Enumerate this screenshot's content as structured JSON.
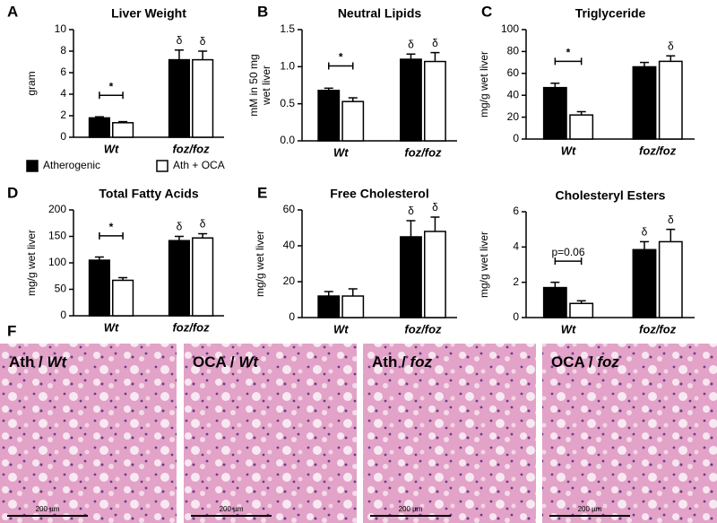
{
  "chart_data": [
    {
      "type": "bar",
      "panel": "A",
      "title": "Liver Weight",
      "ylabel": "gram",
      "categories": [
        "Wt",
        "foz/foz"
      ],
      "series": [
        {
          "name": "Atherogenic",
          "color": "#000000",
          "values": [
            1.8,
            7.2
          ],
          "errors": [
            0.1,
            0.9
          ]
        },
        {
          "name": "Ath + OCA",
          "color": "#ffffff",
          "values": [
            1.35,
            7.2
          ],
          "errors": [
            0.1,
            0.8
          ]
        }
      ],
      "ylim": [
        0,
        10
      ],
      "yticks": [
        0,
        2,
        4,
        6,
        8,
        10
      ],
      "significance": "*",
      "delta": "δ",
      "delta_series": [
        0,
        1
      ],
      "legend": true
    },
    {
      "type": "bar",
      "panel": "B",
      "title": "Neutral Lipids",
      "ylabel": [
        "mM in 50 mg",
        "wet liver"
      ],
      "categories": [
        "Wt",
        "foz/foz"
      ],
      "series": [
        {
          "color": "#000000",
          "values": [
            0.68,
            1.1
          ],
          "errors": [
            0.03,
            0.07
          ]
        },
        {
          "color": "#ffffff",
          "values": [
            0.53,
            1.07
          ],
          "errors": [
            0.05,
            0.12
          ]
        }
      ],
      "ylim": [
        0,
        1.5
      ],
      "yticks": [
        {
          "value": 0,
          "label": "0.0"
        },
        {
          "value": 0.5,
          "label": "0.5"
        },
        {
          "value": 1,
          "label": "1.0"
        },
        {
          "value": 1.5,
          "label": "1.5"
        }
      ],
      "significance": "*",
      "delta": "δ",
      "delta_series": [
        0,
        1
      ]
    },
    {
      "type": "bar",
      "panel": "C",
      "title": "Triglyceride",
      "ylabel": "mg/g wet liver",
      "categories": [
        "Wt",
        "foz/foz"
      ],
      "series": [
        {
          "color": "#000000",
          "values": [
            47,
            66
          ],
          "errors": [
            4,
            4
          ]
        },
        {
          "color": "#ffffff",
          "values": [
            22,
            71
          ],
          "errors": [
            3,
            5
          ]
        }
      ],
      "ylim": [
        0,
        100
      ],
      "yticks": [
        0,
        20,
        40,
        60,
        80,
        100
      ],
      "significance": "*",
      "delta": "δ",
      "delta_series": [
        1
      ]
    },
    {
      "type": "bar",
      "panel": "D",
      "title": "Total Fatty Acids",
      "ylabel": "mg/g wet liver",
      "categories": [
        "Wt",
        "foz/foz"
      ],
      "series": [
        {
          "color": "#000000",
          "values": [
            105,
            142
          ],
          "errors": [
            6,
            8
          ]
        },
        {
          "color": "#ffffff",
          "values": [
            67,
            147
          ],
          "errors": [
            5,
            8
          ]
        }
      ],
      "ylim": [
        0,
        200
      ],
      "yticks": [
        0,
        50,
        100,
        150,
        200
      ],
      "significance": "*",
      "delta": "δ",
      "delta_series": [
        0,
        1
      ]
    },
    {
      "type": "bar",
      "panel": "E",
      "title": "Free Cholesterol",
      "ylabel": "mg/g wet liver",
      "categories": [
        "Wt",
        "foz/foz"
      ],
      "series": [
        {
          "color": "#000000",
          "values": [
            12,
            45
          ],
          "errors": [
            2.5,
            9
          ]
        },
        {
          "color": "#ffffff",
          "values": [
            12,
            48
          ],
          "errors": [
            4,
            8
          ]
        }
      ],
      "ylim": [
        0,
        60
      ],
      "yticks": [
        0,
        20,
        40,
        60
      ],
      "delta": "δ",
      "delta_series": [
        0,
        1
      ]
    },
    {
      "type": "bar",
      "title": "Cholesteryl Esters",
      "ylabel": "mg/g wet liver",
      "categories": [
        "Wt",
        "foz/foz"
      ],
      "series": [
        {
          "color": "#000000",
          "values": [
            1.7,
            3.85
          ],
          "errors": [
            0.3,
            0.45
          ]
        },
        {
          "color": "#ffffff",
          "values": [
            0.8,
            4.3
          ],
          "errors": [
            0.15,
            0.7
          ]
        }
      ],
      "ylim": [
        0,
        6
      ],
      "yticks": [
        0,
        2,
        4,
        6
      ],
      "significance": "p=0.06",
      "delta": "δ",
      "delta_series": [
        0,
        1
      ]
    }
  ],
  "histology": {
    "panel": "F",
    "images": [
      {
        "treatment": "Ath / ",
        "genotype": "Wt",
        "scale_bar": "200 µm"
      },
      {
        "treatment": "OCA / ",
        "genotype": "Wt",
        "scale_bar": "200 µm"
      },
      {
        "treatment": "Ath / ",
        "genotype": "foz",
        "scale_bar": "200 µm"
      },
      {
        "treatment": "OCA / ",
        "genotype": "foz",
        "scale_bar": "200 µm"
      }
    ]
  }
}
